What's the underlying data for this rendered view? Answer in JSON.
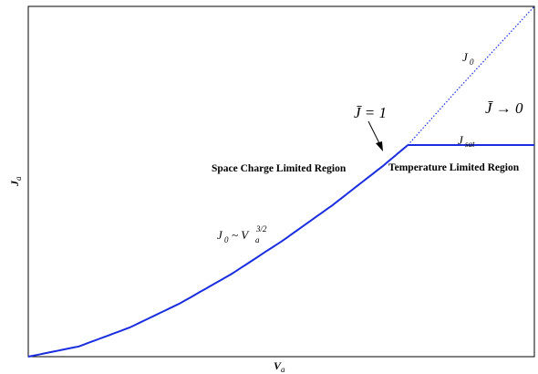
{
  "chart_data": {
    "type": "line",
    "xlabel": "V",
    "xlabel_sub": "a",
    "ylabel": "J",
    "ylabel_sub": "a",
    "ticks": "none",
    "grid": false,
    "series": [
      {
        "name": "J",
        "name_sub": "0",
        "role": "space-charge limited current (continues dotted beyond transition)",
        "color": "#1a2ee0",
        "x": [
          0.0,
          0.1,
          0.2,
          0.3,
          0.4,
          0.5,
          0.6,
          0.7,
          0.75
        ],
        "y": [
          0.0,
          0.043,
          0.122,
          0.224,
          0.345,
          0.483,
          0.634,
          0.799,
          0.888
        ]
      },
      {
        "name": "J",
        "name_sub": "0",
        "role": "dotted extension",
        "style": "dotted",
        "color": "#1a2ee0",
        "x": [
          0.75,
          0.85,
          1.0
        ],
        "y": [
          0.888,
          1.125,
          1.47
        ]
      },
      {
        "name": "J",
        "name_sub": "sat",
        "role": "temperature limited saturation current",
        "color": "#1a2ee0",
        "x": [
          0.75,
          1.0
        ],
        "y": [
          0.888,
          0.888
        ]
      }
    ],
    "annotations": {
      "transition": "J̄ = 1",
      "limit": "J̄ → 0",
      "scaling_pre": "J",
      "scaling_sub0": "0",
      "scaling_mid": "~ V",
      "scaling_suba": "a",
      "scaling_exp": "3/2",
      "region_left": "Space Charge Limited Region",
      "region_right": "Temperature Limited Region"
    }
  }
}
